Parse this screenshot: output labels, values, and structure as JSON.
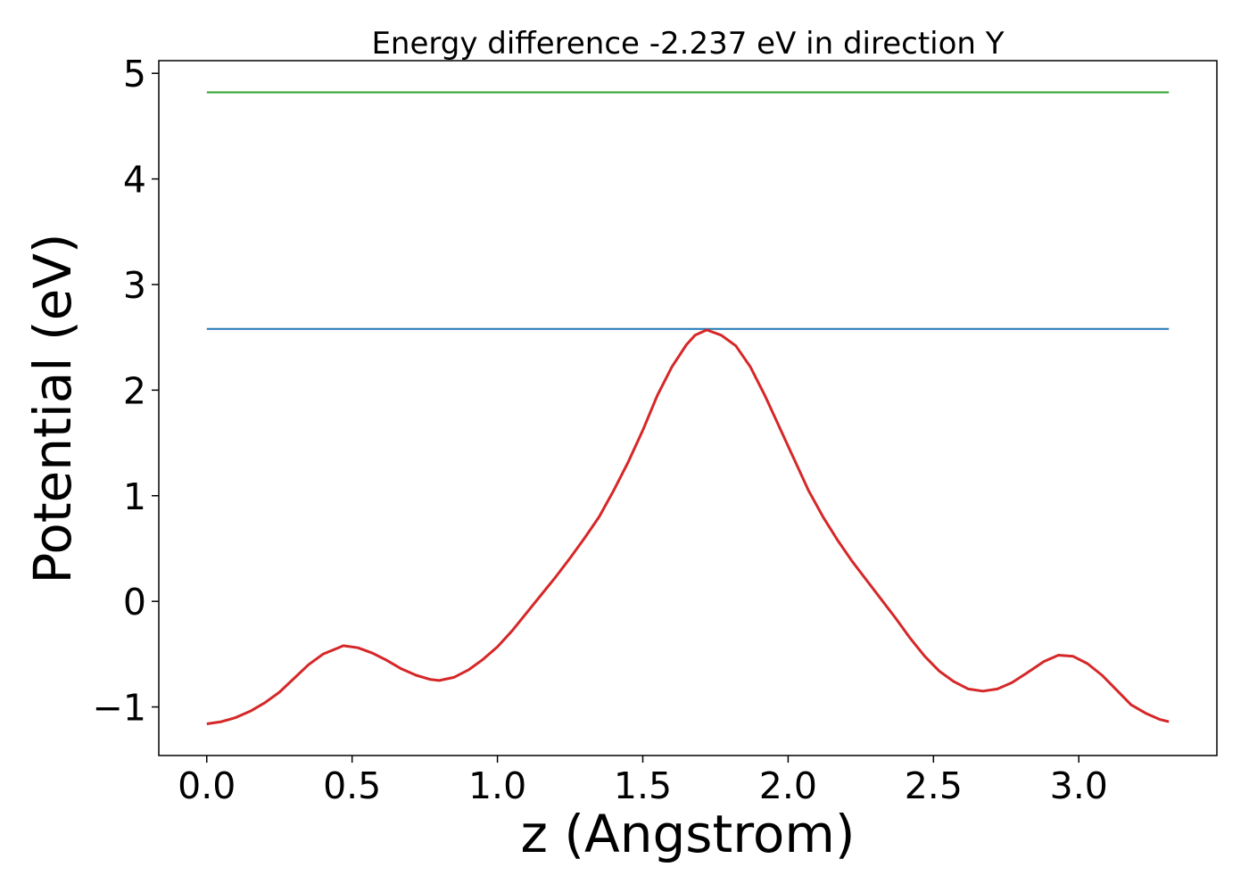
{
  "chart_data": {
    "type": "line",
    "title": "Energy difference -2.237 eV in direction Y",
    "xlabel": "z (Angstrom)",
    "ylabel": "Potential (eV)",
    "xlim": [
      -0.165,
      3.475
    ],
    "ylim": [
      -1.46,
      5.12
    ],
    "xticks": [
      0.0,
      0.5,
      1.0,
      1.5,
      2.0,
      2.5,
      3.0
    ],
    "xtick_labels": [
      "0.0",
      "0.5",
      "1.0",
      "1.5",
      "2.0",
      "2.5",
      "3.0"
    ],
    "yticks": [
      -1,
      0,
      1,
      2,
      3,
      4,
      5
    ],
    "ytick_labels": [
      "−1",
      "0",
      "1",
      "2",
      "3",
      "4",
      "5"
    ],
    "grid": false,
    "legend": false,
    "series": [
      {
        "color": "#2ca02c",
        "x": [
          0.0,
          3.31
        ],
        "y": [
          4.82,
          4.82
        ]
      },
      {
        "color": "#1f77b4",
        "x": [
          0.0,
          3.31
        ],
        "y": [
          2.58,
          2.58
        ]
      },
      {
        "color": "#d62728",
        "x": [
          0.0,
          0.05,
          0.1,
          0.15,
          0.2,
          0.25,
          0.3,
          0.35,
          0.4,
          0.47,
          0.52,
          0.57,
          0.62,
          0.67,
          0.72,
          0.77,
          0.8,
          0.85,
          0.9,
          0.95,
          1.0,
          1.05,
          1.1,
          1.15,
          1.2,
          1.25,
          1.3,
          1.35,
          1.4,
          1.45,
          1.5,
          1.55,
          1.6,
          1.65,
          1.68,
          1.72,
          1.77,
          1.82,
          1.87,
          1.92,
          1.97,
          2.02,
          2.07,
          2.12,
          2.17,
          2.22,
          2.27,
          2.32,
          2.37,
          2.42,
          2.47,
          2.52,
          2.57,
          2.62,
          2.67,
          2.72,
          2.77,
          2.82,
          2.88,
          2.93,
          2.98,
          3.03,
          3.08,
          3.13,
          3.18,
          3.23,
          3.28,
          3.31
        ],
        "y": [
          -1.16,
          -1.14,
          -1.1,
          -1.04,
          -0.96,
          -0.86,
          -0.73,
          -0.6,
          -0.5,
          -0.42,
          -0.44,
          -0.49,
          -0.56,
          -0.64,
          -0.7,
          -0.74,
          -0.75,
          -0.72,
          -0.65,
          -0.55,
          -0.43,
          -0.28,
          -0.11,
          0.06,
          0.23,
          0.41,
          0.6,
          0.8,
          1.05,
          1.32,
          1.62,
          1.95,
          2.22,
          2.43,
          2.52,
          2.57,
          2.52,
          2.42,
          2.22,
          1.95,
          1.65,
          1.35,
          1.05,
          0.8,
          0.58,
          0.38,
          0.2,
          0.02,
          -0.16,
          -0.35,
          -0.52,
          -0.66,
          -0.76,
          -0.83,
          -0.85,
          -0.83,
          -0.77,
          -0.68,
          -0.57,
          -0.51,
          -0.52,
          -0.59,
          -0.7,
          -0.84,
          -0.98,
          -1.06,
          -1.12,
          -1.14
        ]
      }
    ]
  }
}
